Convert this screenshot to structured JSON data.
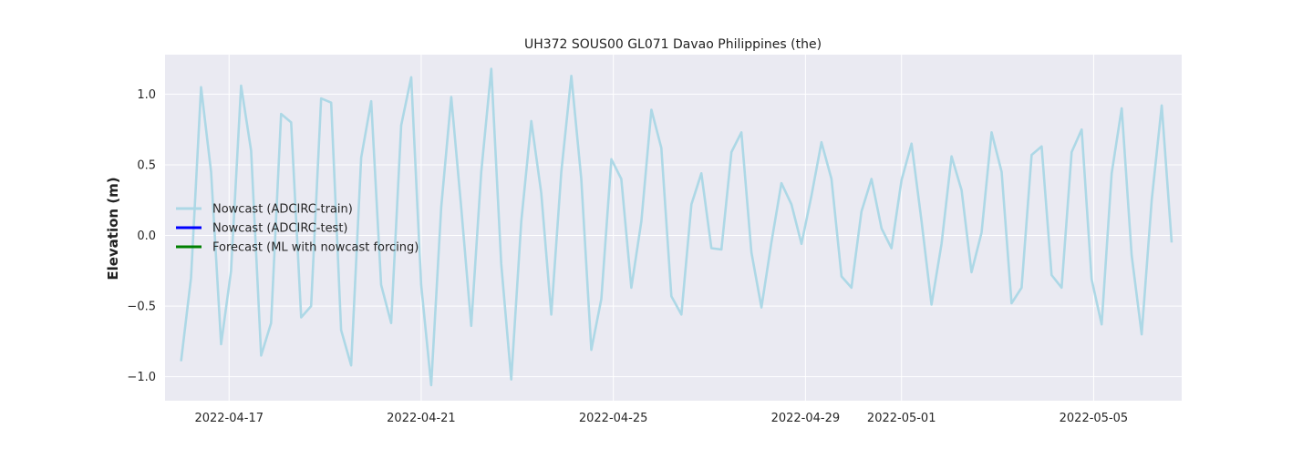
{
  "chart_data": {
    "type": "line",
    "title": "UH372 SOUS00 GL071 Davao Philippines (the)",
    "xlabel": "",
    "ylabel": "Elevation (m)",
    "xlim": [
      "2022-04-15T16:00",
      "2022-05-06T20:00"
    ],
    "ylim": [
      -1.17,
      1.28
    ],
    "x_ticks": [
      "2022-04-17",
      "2022-04-21",
      "2022-04-25",
      "2022-04-29",
      "2022-05-01",
      "2022-05-05"
    ],
    "y_ticks": [
      "−1.0",
      "−0.5",
      "0.0",
      "0.5",
      "1.0"
    ],
    "grid": true,
    "legend": {
      "position": "center-left",
      "entries": [
        {
          "label": "Nowcast (ADCIRC-train)",
          "color": "#add8e6"
        },
        {
          "label": "Nowcast (ADCIRC-test)",
          "color": "#0000ff"
        },
        {
          "label": "Forecast (ML with nowcast forcing)",
          "color": "#008000"
        }
      ]
    },
    "colors": {
      "background": "#eaeaf2",
      "grid": "#ffffff",
      "train": "#add8e6",
      "test": "#0000ff",
      "forecast": "#008000",
      "spread": "#a9a9a9"
    },
    "series": [
      {
        "name": "Nowcast (ADCIRC-train)",
        "color": "#add8e6",
        "points": [
          [
            "2022-04-16T00:00",
            -0.89
          ],
          [
            "2022-04-16T05:00",
            -0.3
          ],
          [
            "2022-04-16T10:00",
            1.05
          ],
          [
            "2022-04-16T15:00",
            0.45
          ],
          [
            "2022-04-16T20:00",
            -0.77
          ],
          [
            "2022-04-17T01:00",
            -0.25
          ],
          [
            "2022-04-17T06:00",
            1.06
          ],
          [
            "2022-04-17T11:00",
            0.6
          ],
          [
            "2022-04-17T16:00",
            -0.85
          ],
          [
            "2022-04-17T21:00",
            -0.62
          ],
          [
            "2022-04-18T02:00",
            0.86
          ],
          [
            "2022-04-18T07:00",
            0.8
          ],
          [
            "2022-04-18T12:00",
            -0.58
          ],
          [
            "2022-04-18T17:00",
            -0.5
          ],
          [
            "2022-04-18T22:00",
            0.97
          ],
          [
            "2022-04-19T03:00",
            0.94
          ],
          [
            "2022-04-19T08:00",
            -0.67
          ],
          [
            "2022-04-19T13:00",
            -0.92
          ],
          [
            "2022-04-19T18:00",
            0.55
          ],
          [
            "2022-04-19T23:00",
            0.95
          ],
          [
            "2022-04-20T04:00",
            -0.35
          ],
          [
            "2022-04-20T09:00",
            -0.62
          ],
          [
            "2022-04-20T14:00",
            0.78
          ],
          [
            "2022-04-20T19:00",
            1.12
          ],
          [
            "2022-04-21T00:00",
            -0.35
          ],
          [
            "2022-04-21T05:00",
            -1.06
          ],
          [
            "2022-04-21T10:00",
            0.2
          ],
          [
            "2022-04-21T15:00",
            0.98
          ],
          [
            "2022-04-21T20:00",
            0.2
          ],
          [
            "2022-04-22T01:00",
            -0.64
          ],
          [
            "2022-04-22T06:00",
            0.45
          ],
          [
            "2022-04-22T11:00",
            1.18
          ],
          [
            "2022-04-22T16:00",
            -0.2
          ],
          [
            "2022-04-22T21:00",
            -1.02
          ],
          [
            "2022-04-23T02:00",
            0.1
          ],
          [
            "2022-04-23T07:00",
            0.81
          ],
          [
            "2022-04-23T12:00",
            0.3
          ],
          [
            "2022-04-23T17:00",
            -0.56
          ],
          [
            "2022-04-23T22:00",
            0.45
          ],
          [
            "2022-04-24T03:00",
            1.13
          ],
          [
            "2022-04-24T08:00",
            0.4
          ],
          [
            "2022-04-24T13:00",
            -0.81
          ],
          [
            "2022-04-24T18:00",
            -0.45
          ],
          [
            "2022-04-24T23:00",
            0.54
          ],
          [
            "2022-04-25T04:00",
            0.4
          ],
          [
            "2022-04-25T09:00",
            -0.37
          ],
          [
            "2022-04-25T14:00",
            0.1
          ],
          [
            "2022-04-25T19:00",
            0.89
          ],
          [
            "2022-04-26T00:00",
            0.62
          ],
          [
            "2022-04-26T05:00",
            -0.43
          ],
          [
            "2022-04-26T10:00",
            -0.56
          ],
          [
            "2022-04-26T15:00",
            0.22
          ],
          [
            "2022-04-26T20:00",
            0.44
          ],
          [
            "2022-04-27T01:00",
            -0.09
          ],
          [
            "2022-04-27T06:00",
            -0.1
          ],
          [
            "2022-04-27T11:00",
            0.59
          ],
          [
            "2022-04-27T16:00",
            0.73
          ],
          [
            "2022-04-27T21:00",
            -0.12
          ],
          [
            "2022-04-28T02:00",
            -0.51
          ],
          [
            "2022-04-28T07:00",
            -0.05
          ],
          [
            "2022-04-28T12:00",
            0.37
          ],
          [
            "2022-04-28T17:00",
            0.22
          ],
          [
            "2022-04-28T22:00",
            -0.06
          ],
          [
            "2022-04-29T03:00",
            0.28
          ],
          [
            "2022-04-29T08:00",
            0.66
          ],
          [
            "2022-04-29T13:00",
            0.4
          ],
          [
            "2022-04-29T18:00",
            -0.29
          ],
          [
            "2022-04-29T23:00",
            -0.37
          ],
          [
            "2022-04-30T04:00",
            0.17
          ],
          [
            "2022-04-30T09:00",
            0.4
          ],
          [
            "2022-04-30T14:00",
            0.05
          ],
          [
            "2022-04-30T19:00",
            -0.09
          ],
          [
            "2022-05-01T00:00",
            0.39
          ],
          [
            "2022-05-01T05:00",
            0.65
          ],
          [
            "2022-05-01T10:00",
            0.1
          ],
          [
            "2022-05-01T15:00",
            -0.49
          ],
          [
            "2022-05-01T20:00",
            -0.06
          ],
          [
            "2022-05-02T01:00",
            0.56
          ],
          [
            "2022-05-02T06:00",
            0.32
          ],
          [
            "2022-05-02T11:00",
            -0.26
          ],
          [
            "2022-05-02T16:00",
            0.02
          ],
          [
            "2022-05-02T21:00",
            0.73
          ],
          [
            "2022-05-03T02:00",
            0.45
          ],
          [
            "2022-05-03T07:00",
            -0.48
          ],
          [
            "2022-05-03T12:00",
            -0.37
          ],
          [
            "2022-05-03T17:00",
            0.57
          ],
          [
            "2022-05-03T22:00",
            0.63
          ],
          [
            "2022-05-04T03:00",
            -0.28
          ],
          [
            "2022-05-04T08:00",
            -0.37
          ],
          [
            "2022-05-04T13:00",
            0.59
          ],
          [
            "2022-05-04T18:00",
            0.75
          ],
          [
            "2022-05-04T23:00",
            -0.31
          ],
          [
            "2022-05-05T04:00",
            -0.63
          ],
          [
            "2022-05-05T09:00",
            0.44
          ],
          [
            "2022-05-05T14:00",
            0.9
          ],
          [
            "2022-05-05T19:00",
            -0.14
          ],
          [
            "2022-05-06T00:00",
            -0.7
          ],
          [
            "2022-05-06T05:00",
            0.25
          ],
          [
            "2022-05-06T10:00",
            0.92
          ],
          [
            "2022-05-06T15:00",
            -0.05
          ]
        ]
      }
    ]
  }
}
